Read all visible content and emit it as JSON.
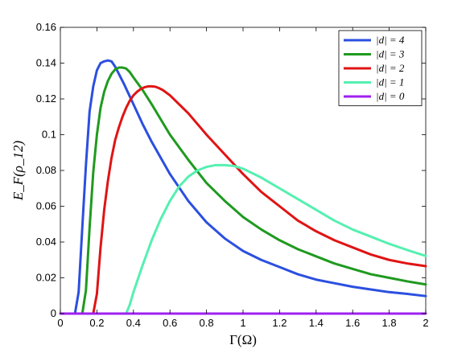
{
  "chart_data": {
    "type": "line",
    "title": "",
    "xlabel": "Γ(Ω)",
    "ylabel": "E_F(ρ_12)",
    "xlim": [
      0,
      2
    ],
    "ylim": [
      0,
      0.16
    ],
    "xticks": [
      0,
      0.2,
      0.4,
      0.6,
      0.8,
      1,
      1.2,
      1.4,
      1.6,
      1.8,
      2
    ],
    "xtick_labels": [
      "0",
      "0.2",
      "0.4",
      "0.6",
      "0.8",
      "1",
      "1.2",
      "1.4",
      "1.6",
      "1.8",
      "2"
    ],
    "yticks": [
      0,
      0.02,
      0.04,
      0.06,
      0.08,
      0.1,
      0.12,
      0.14,
      0.16
    ],
    "ytick_labels": [
      "0",
      "0.02",
      "0.04",
      "0.06",
      "0.08",
      "0.1",
      "0.12",
      "0.14",
      "0.16"
    ],
    "grid": false,
    "legend_position": "top-right",
    "series": [
      {
        "name": "|d| = 4",
        "color": "#2b4fe0",
        "x": [
          0.08,
          0.1,
          0.12,
          0.14,
          0.16,
          0.18,
          0.2,
          0.22,
          0.24,
          0.26,
          0.28,
          0.3,
          0.35,
          0.4,
          0.45,
          0.5,
          0.6,
          0.7,
          0.8,
          0.9,
          1.0,
          1.1,
          1.2,
          1.3,
          1.4,
          1.5,
          1.6,
          1.7,
          1.8,
          1.9,
          2.0
        ],
        "y": [
          0.0,
          0.012,
          0.048,
          0.083,
          0.113,
          0.127,
          0.136,
          0.14,
          0.141,
          0.1415,
          0.141,
          0.138,
          0.128,
          0.117,
          0.106,
          0.096,
          0.078,
          0.063,
          0.051,
          0.042,
          0.035,
          0.03,
          0.026,
          0.022,
          0.019,
          0.017,
          0.015,
          0.0135,
          0.012,
          0.011,
          0.0098
        ]
      },
      {
        "name": "|d| = 3",
        "color": "#1f9a1f",
        "x": [
          0.12,
          0.14,
          0.16,
          0.18,
          0.2,
          0.22,
          0.24,
          0.26,
          0.28,
          0.3,
          0.32,
          0.34,
          0.36,
          0.38,
          0.4,
          0.45,
          0.5,
          0.6,
          0.7,
          0.8,
          0.9,
          1.0,
          1.1,
          1.2,
          1.3,
          1.4,
          1.5,
          1.6,
          1.7,
          1.8,
          1.9,
          2.0
        ],
        "y": [
          0.0,
          0.013,
          0.048,
          0.079,
          0.1,
          0.115,
          0.124,
          0.13,
          0.134,
          0.1365,
          0.1375,
          0.1375,
          0.137,
          0.135,
          0.132,
          0.125,
          0.117,
          0.1,
          0.086,
          0.073,
          0.063,
          0.054,
          0.047,
          0.041,
          0.036,
          0.032,
          0.028,
          0.025,
          0.022,
          0.02,
          0.018,
          0.0163
        ]
      },
      {
        "name": "|d| = 2",
        "color": "#e01414",
        "x": [
          0.18,
          0.2,
          0.22,
          0.24,
          0.26,
          0.28,
          0.3,
          0.32,
          0.34,
          0.36,
          0.38,
          0.4,
          0.42,
          0.44,
          0.46,
          0.48,
          0.5,
          0.52,
          0.54,
          0.56,
          0.6,
          0.7,
          0.8,
          0.9,
          1.0,
          1.1,
          1.2,
          1.3,
          1.4,
          1.5,
          1.6,
          1.7,
          1.8,
          1.9,
          2.0
        ],
        "y": [
          0.0,
          0.011,
          0.037,
          0.058,
          0.074,
          0.087,
          0.097,
          0.104,
          0.11,
          0.115,
          0.119,
          0.122,
          0.124,
          0.1255,
          0.1265,
          0.127,
          0.127,
          0.1268,
          0.126,
          0.125,
          0.122,
          0.112,
          0.1,
          0.089,
          0.078,
          0.068,
          0.06,
          0.052,
          0.046,
          0.041,
          0.037,
          0.033,
          0.03,
          0.028,
          0.0265
        ]
      },
      {
        "name": "|d| = 1",
        "color": "#55f0b0",
        "x": [
          0.36,
          0.38,
          0.4,
          0.45,
          0.5,
          0.55,
          0.6,
          0.65,
          0.7,
          0.75,
          0.8,
          0.85,
          0.9,
          0.95,
          1.0,
          1.05,
          1.1,
          1.2,
          1.3,
          1.4,
          1.5,
          1.6,
          1.7,
          1.8,
          1.9,
          2.0
        ],
        "y": [
          0.0,
          0.005,
          0.012,
          0.027,
          0.041,
          0.053,
          0.063,
          0.071,
          0.0765,
          0.08,
          0.082,
          0.083,
          0.083,
          0.0825,
          0.081,
          0.0785,
          0.076,
          0.07,
          0.064,
          0.058,
          0.052,
          0.047,
          0.043,
          0.039,
          0.0355,
          0.0322
        ]
      },
      {
        "name": "|d| = 0",
        "color": "#a020f0",
        "x": [
          0.0,
          2.0
        ],
        "y": [
          0.0,
          0.0
        ]
      }
    ]
  }
}
